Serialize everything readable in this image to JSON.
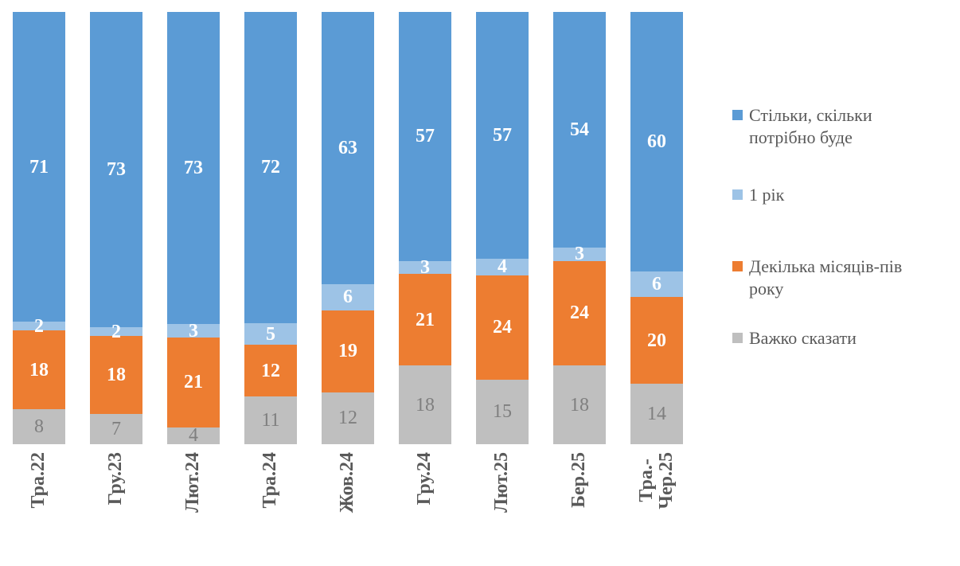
{
  "chart_data": {
    "type": "bar",
    "variant": "stacked-100",
    "title": "",
    "xlabel": "",
    "ylabel": "",
    "grid": false,
    "legend_position": "right",
    "axis_label_color": "#595959",
    "categories": [
      "Тра.22",
      "Гру.23",
      "Лют.24",
      "Тра.24",
      "Жов.24",
      "Гру.24",
      "Лют.25",
      "Бер.25",
      "Тра.-\nЧер.25"
    ],
    "series": [
      {
        "name": "Стільки, скільки потрібно буде",
        "color": "#5B9BD5",
        "label_color": "#FFFFFF",
        "label_weight": "bold",
        "values": [
          71,
          73,
          73,
          72,
          63,
          57,
          57,
          54,
          60
        ]
      },
      {
        "name": "1 рік",
        "color": "#9DC3E6",
        "label_color": "#FFFFFF",
        "label_weight": "bold",
        "values": [
          2,
          2,
          3,
          5,
          6,
          3,
          4,
          3,
          6
        ]
      },
      {
        "name": "Декілька місяців-пів року",
        "color": "#ED7D31",
        "label_color": "#FFFFFF",
        "label_weight": "bold",
        "values": [
          18,
          18,
          21,
          12,
          19,
          21,
          24,
          24,
          20
        ]
      },
      {
        "name": "Важко сказати",
        "color": "#BFBFBF",
        "label_color": "#7F7F7F",
        "label_weight": "normal",
        "values": [
          8,
          7,
          4,
          11,
          12,
          18,
          15,
          18,
          14
        ]
      }
    ],
    "legend_items": [
      {
        "text": "Стільки, скільки\nпотрібно буде",
        "color": "#5B9BD5"
      },
      {
        "text": "1 рік",
        "color": "#9DC3E6"
      },
      {
        "text": "Декілька місяців-пів\nроку",
        "color": "#ED7D31"
      },
      {
        "text": "Важко сказати",
        "color": "#BFBFBF"
      }
    ]
  }
}
